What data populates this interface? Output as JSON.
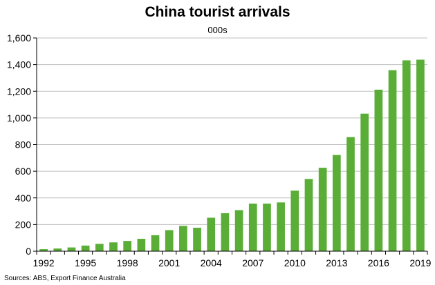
{
  "chart_data": {
    "type": "bar",
    "title": "China tourist arrivals",
    "subtitle": "000s",
    "source": "Sources: ABS, Export Finance Australia",
    "xlabel": "",
    "ylabel": "",
    "categories": [
      "1992",
      "1993",
      "1994",
      "1995",
      "1996",
      "1997",
      "1998",
      "1999",
      "2000",
      "2001",
      "2002",
      "2003",
      "2004",
      "2005",
      "2006",
      "2007",
      "2008",
      "2009",
      "2010",
      "2011",
      "2012",
      "2013",
      "2014",
      "2015",
      "2016",
      "2017",
      "2018",
      "2019"
    ],
    "x_tick_labels": [
      "1992",
      "1995",
      "1998",
      "2001",
      "2004",
      "2007",
      "2010",
      "2013",
      "2016",
      "2019"
    ],
    "values": [
      15,
      20,
      28,
      42,
      55,
      66,
      77,
      93,
      120,
      158,
      190,
      176,
      251,
      285,
      308,
      357,
      357,
      366,
      454,
      542,
      626,
      722,
      856,
      1032,
      1212,
      1358,
      1432,
      1437
    ],
    "ylim": [
      0,
      1600
    ],
    "y_ticks": [
      0,
      200,
      400,
      600,
      800,
      1000,
      1200,
      1400,
      1600
    ],
    "y_tick_labels": [
      "0",
      "200",
      "400",
      "600",
      "800",
      "1,000",
      "1,200",
      "1,400",
      "1,600"
    ],
    "grid": true,
    "colors": {
      "bar": "#5aae37",
      "grid": "#bfbfbf",
      "axis": "#000000"
    }
  }
}
